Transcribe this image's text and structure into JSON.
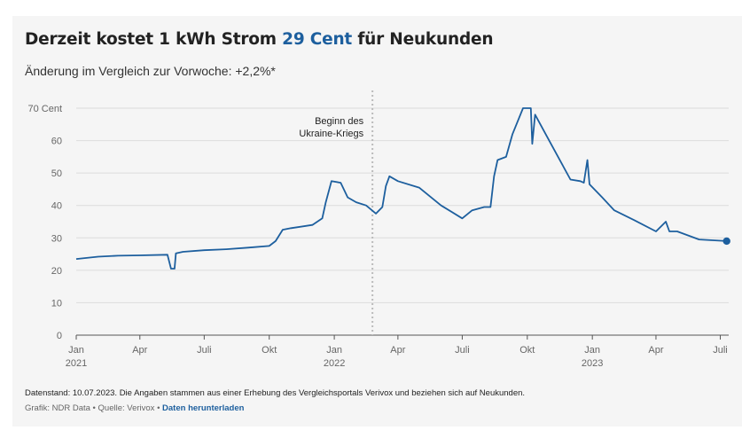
{
  "header": {
    "title_pre": "Derzeit kostet 1 kWh Strom",
    "title_highlight": "29 Cent",
    "title_post": "für Neukunden",
    "highlight_color": "#1d5f9e",
    "subtitle": "Änderung im Vergleich zur Vorwoche: +2,2%*"
  },
  "footer": {
    "note": "Datenstand: 10.07.2023. Die Angaben stammen aus einer Erhebung des Vergleichsportals Verivox und beziehen sich auf Neukunden.",
    "credit": "Grafik: NDR Data",
    "sep1": "•",
    "source": "Quelle: Verivox",
    "sep2": "•",
    "download": "Daten herunterladen"
  },
  "chart_data": {
    "type": "line",
    "x_unit": "date",
    "ylim": [
      0,
      70
    ],
    "y_ticks": [
      {
        "value": 0,
        "label": "0"
      },
      {
        "value": 10,
        "label": "10"
      },
      {
        "value": 20,
        "label": "20"
      },
      {
        "value": 30,
        "label": "30"
      },
      {
        "value": 40,
        "label": "40"
      },
      {
        "value": 50,
        "label": "50"
      },
      {
        "value": 60,
        "label": "60"
      },
      {
        "value": 70,
        "label": "70 Cent"
      }
    ],
    "x_ticks": [
      {
        "date": "2021-01-01",
        "label": "Jan",
        "year": "2021"
      },
      {
        "date": "2021-04-01",
        "label": "Apr",
        "year": ""
      },
      {
        "date": "2021-07-01",
        "label": "Juli",
        "year": ""
      },
      {
        "date": "2021-10-01",
        "label": "Okt",
        "year": ""
      },
      {
        "date": "2022-01-01",
        "label": "Jan",
        "year": "2022"
      },
      {
        "date": "2022-04-01",
        "label": "Apr",
        "year": ""
      },
      {
        "date": "2022-07-01",
        "label": "Juli",
        "year": ""
      },
      {
        "date": "2022-10-01",
        "label": "Okt",
        "year": ""
      },
      {
        "date": "2023-01-01",
        "label": "Jan",
        "year": "2023"
      },
      {
        "date": "2023-04-01",
        "label": "Apr",
        "year": ""
      },
      {
        "date": "2023-07-01",
        "label": "Juli",
        "year": ""
      }
    ],
    "annotation": {
      "date": "2022-02-24",
      "line1": "Beginn des",
      "line2": "Ukraine-Kriegs"
    },
    "grid": true,
    "series": [
      {
        "color": "#1d5f9e",
        "points": [
          [
            "2021-01-01",
            23.5
          ],
          [
            "2021-02-01",
            24.2
          ],
          [
            "2021-03-01",
            24.5
          ],
          [
            "2021-04-01",
            24.6
          ],
          [
            "2021-05-10",
            24.8
          ],
          [
            "2021-05-15",
            20.5
          ],
          [
            "2021-05-20",
            20.5
          ],
          [
            "2021-05-22",
            25.2
          ],
          [
            "2021-06-01",
            25.7
          ],
          [
            "2021-07-01",
            26.2
          ],
          [
            "2021-08-01",
            26.5
          ],
          [
            "2021-09-01",
            27.0
          ],
          [
            "2021-10-01",
            27.5
          ],
          [
            "2021-10-10",
            29.0
          ],
          [
            "2021-10-20",
            32.5
          ],
          [
            "2021-11-01",
            33.0
          ],
          [
            "2021-12-01",
            34.0
          ],
          [
            "2021-12-15",
            36.0
          ],
          [
            "2021-12-20",
            41.0
          ],
          [
            "2021-12-28",
            47.5
          ],
          [
            "2022-01-10",
            47.0
          ],
          [
            "2022-01-20",
            42.5
          ],
          [
            "2022-02-01",
            41.0
          ],
          [
            "2022-02-15",
            40.0
          ],
          [
            "2022-03-01",
            37.5
          ],
          [
            "2022-03-10",
            39.5
          ],
          [
            "2022-03-15",
            46.0
          ],
          [
            "2022-03-20",
            49.0
          ],
          [
            "2022-04-01",
            47.5
          ],
          [
            "2022-05-01",
            45.5
          ],
          [
            "2022-06-01",
            40.0
          ],
          [
            "2022-07-01",
            36.0
          ],
          [
            "2022-07-15",
            38.5
          ],
          [
            "2022-08-01",
            39.5
          ],
          [
            "2022-08-10",
            39.5
          ],
          [
            "2022-08-15",
            49.0
          ],
          [
            "2022-08-20",
            54.0
          ],
          [
            "2022-09-01",
            55.0
          ],
          [
            "2022-09-10",
            62.0
          ],
          [
            "2022-09-25",
            70.0
          ],
          [
            "2022-10-06",
            70.0
          ],
          [
            "2022-10-08",
            59.0
          ],
          [
            "2022-10-12",
            68.0
          ],
          [
            "2022-11-01",
            60.0
          ],
          [
            "2022-12-01",
            48.0
          ],
          [
            "2022-12-15",
            47.5
          ],
          [
            "2022-12-20",
            47.0
          ],
          [
            "2022-12-25",
            54.0
          ],
          [
            "2022-12-28",
            46.5
          ],
          [
            "2023-01-15",
            42.5
          ],
          [
            "2023-02-01",
            38.5
          ],
          [
            "2023-03-01",
            35.5
          ],
          [
            "2023-04-01",
            32.0
          ],
          [
            "2023-04-15",
            35.0
          ],
          [
            "2023-04-20",
            32.0
          ],
          [
            "2023-05-01",
            32.0
          ],
          [
            "2023-06-01",
            29.5
          ],
          [
            "2023-07-10",
            29.0
          ]
        ]
      }
    ]
  }
}
